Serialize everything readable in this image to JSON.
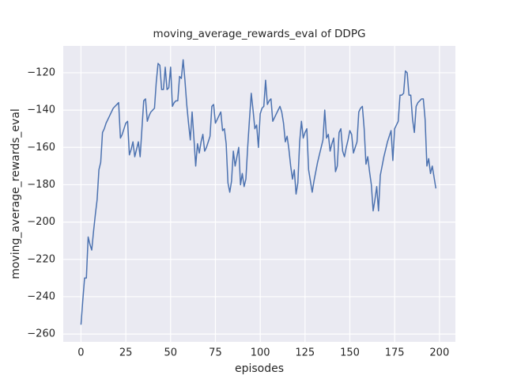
{
  "chart_data": {
    "type": "line",
    "title": "moving_average_rewards_eval of DDPG",
    "xlabel": "episodes",
    "ylabel": "moving_average_rewards_eval",
    "color": "#4c72b0",
    "grid": true,
    "xlim": [
      -9.9,
      208.9
    ],
    "ylim": [
      -264.2,
      -105.6
    ],
    "xticks": [
      0,
      25,
      50,
      75,
      100,
      125,
      150,
      175,
      200
    ],
    "yticks": [
      {
        "value": -260,
        "label": "−260"
      },
      {
        "value": -240,
        "label": "−240"
      },
      {
        "value": -220,
        "label": "−220"
      },
      {
        "value": -200,
        "label": "−200"
      },
      {
        "value": -180,
        "label": "−180"
      },
      {
        "value": -160,
        "label": "−160"
      },
      {
        "value": -140,
        "label": "−140"
      },
      {
        "value": -120,
        "label": "−120"
      }
    ],
    "x": [
      0,
      1,
      2,
      3,
      4,
      5,
      6,
      7,
      8,
      9,
      10,
      11,
      12,
      13,
      14,
      15,
      16,
      17,
      18,
      19,
      20,
      21,
      22,
      23,
      24,
      25,
      26,
      27,
      28,
      29,
      30,
      31,
      32,
      33,
      34,
      35,
      36,
      37,
      38,
      39,
      40,
      41,
      42,
      43,
      44,
      45,
      46,
      47,
      48,
      49,
      50,
      51,
      52,
      53,
      54,
      55,
      56,
      57,
      58,
      59,
      60,
      61,
      62,
      63,
      64,
      65,
      66,
      67,
      68,
      69,
      70,
      71,
      72,
      73,
      74,
      75,
      76,
      77,
      78,
      79,
      80,
      81,
      82,
      83,
      84,
      85,
      86,
      87,
      88,
      89,
      90,
      91,
      92,
      93,
      94,
      95,
      96,
      97,
      98,
      99,
      100,
      101,
      102,
      103,
      104,
      105,
      106,
      107,
      108,
      109,
      110,
      111,
      112,
      113,
      114,
      115,
      116,
      117,
      118,
      119,
      120,
      121,
      122,
      123,
      124,
      125,
      126,
      127,
      128,
      129,
      130,
      131,
      132,
      133,
      134,
      135,
      136,
      137,
      138,
      139,
      140,
      141,
      142,
      143,
      144,
      145,
      146,
      147,
      148,
      149,
      150,
      151,
      152,
      153,
      154,
      155,
      156,
      157,
      158,
      159,
      160,
      161,
      162,
      163,
      164,
      165,
      166,
      167,
      168,
      169,
      170,
      171,
      172,
      173,
      174,
      175,
      176,
      177,
      178,
      179,
      180,
      181,
      182,
      183,
      184,
      185,
      186,
      187,
      188,
      189,
      190,
      191,
      192,
      193,
      194,
      195,
      196,
      197,
      198
    ],
    "values": [
      -255,
      -242,
      -230,
      -230,
      -208,
      -212,
      -215,
      -205,
      -196,
      -188,
      -172,
      -168,
      -152,
      -150,
      -147,
      -145,
      -143,
      -141,
      -139,
      -138,
      -137,
      -136,
      -155,
      -153,
      -150,
      -147,
      -146,
      -164,
      -161,
      -157,
      -165,
      -161,
      -157,
      -165,
      -150,
      -135,
      -134,
      -146,
      -143,
      -141,
      -140,
      -139,
      -125,
      -115,
      -116,
      -129,
      -129,
      -117,
      -129,
      -128,
      -117,
      -138,
      -136,
      -135,
      -135,
      -122,
      -123,
      -113,
      -124,
      -137,
      -147,
      -156,
      -141,
      -155,
      -170,
      -158,
      -163,
      -157,
      -153,
      -162,
      -160,
      -157,
      -154,
      -138,
      -137,
      -147,
      -145,
      -143,
      -141,
      -151,
      -150,
      -158,
      -179,
      -184,
      -178,
      -162,
      -170,
      -165,
      -160,
      -180,
      -174,
      -181,
      -177,
      -160,
      -145,
      -131,
      -140,
      -150,
      -148,
      -160,
      -142,
      -139,
      -138,
      -124,
      -137,
      -135,
      -134,
      -146,
      -144,
      -142,
      -140,
      -138,
      -141,
      -147,
      -157,
      -154,
      -161,
      -170,
      -177,
      -172,
      -185,
      -179,
      -157,
      -146,
      -155,
      -152,
      -150,
      -172,
      -178,
      -184,
      -178,
      -173,
      -168,
      -164,
      -160,
      -156,
      -140,
      -155,
      -153,
      -162,
      -158,
      -155,
      -173,
      -170,
      -152,
      -150,
      -162,
      -165,
      -160,
      -156,
      -151,
      -153,
      -163,
      -160,
      -157,
      -141,
      -139,
      -138,
      -150,
      -169,
      -165,
      -173,
      -180,
      -194,
      -188,
      -181,
      -194,
      -175,
      -170,
      -165,
      -161,
      -157,
      -154,
      -151,
      -167,
      -150,
      -148,
      -146,
      -132,
      -132,
      -131,
      -119,
      -120,
      -132,
      -132,
      -145,
      -152,
      -138,
      -136,
      -135,
      -134,
      -134,
      -145,
      -170,
      -166,
      -174,
      -170,
      -176,
      -182
    ]
  }
}
